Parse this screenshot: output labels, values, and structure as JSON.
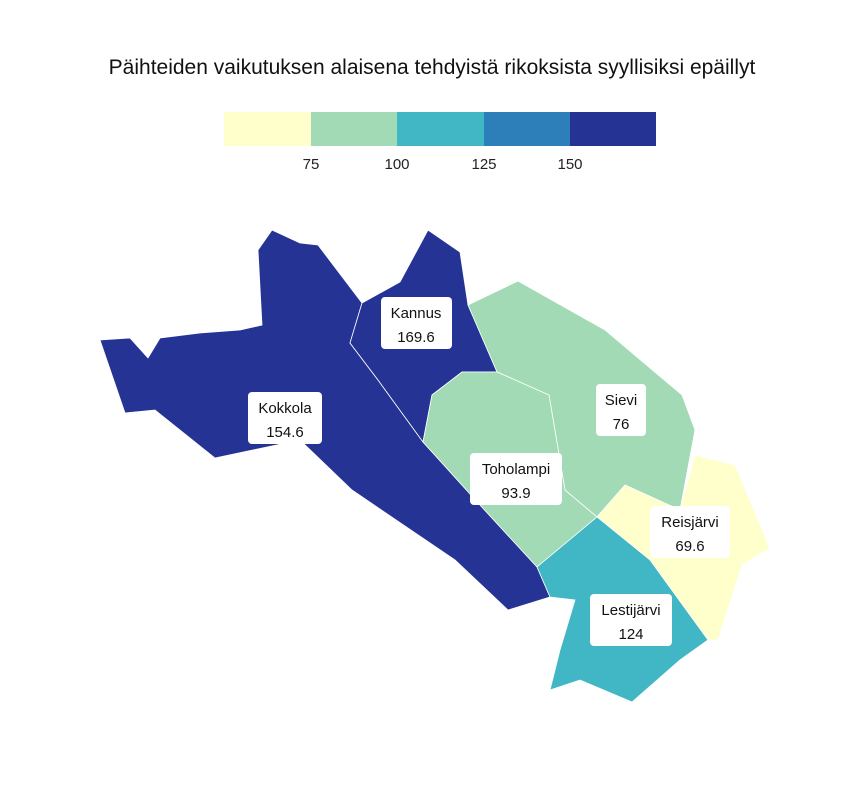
{
  "title": "Päihteiden vaikutuksen alaisena tehdyistä rikoksista syyllisiksi epäillyt",
  "legend": {
    "colors": [
      "#ffffcc",
      "#a1dab4",
      "#41b6c4",
      "#2c7fb8",
      "#253494"
    ],
    "ticks": [
      "75",
      "100",
      "125",
      "150"
    ]
  },
  "municipalities": [
    {
      "name": "Kokkola",
      "value": "154.6",
      "color": "#253494"
    },
    {
      "name": "Kannus",
      "value": "169.6",
      "color": "#253494"
    },
    {
      "name": "Sievi",
      "value": "76",
      "color": "#a1dab4"
    },
    {
      "name": "Toholampi",
      "value": "93.9",
      "color": "#a1dab4"
    },
    {
      "name": "Reisjärvi",
      "value": "69.6",
      "color": "#ffffcc"
    },
    {
      "name": "Lestijärvi",
      "value": "124",
      "color": "#41b6c4"
    }
  ]
}
